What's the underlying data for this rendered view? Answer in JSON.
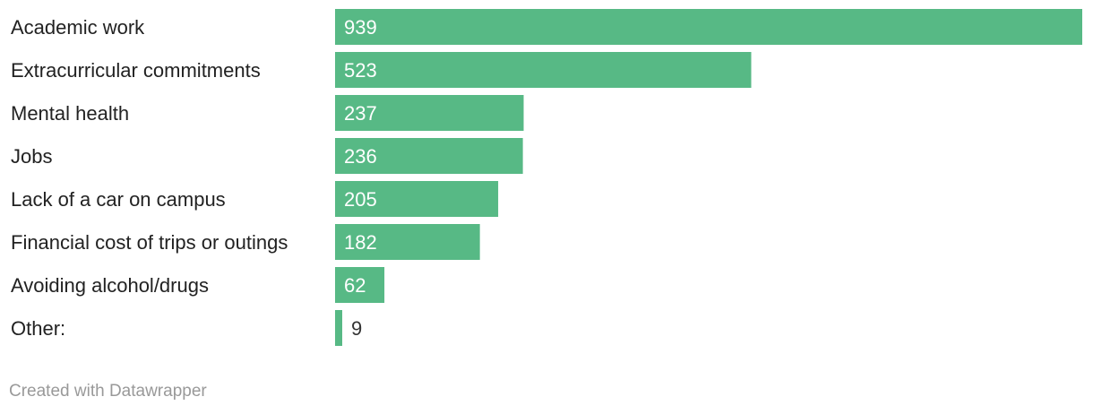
{
  "chart_data": {
    "type": "bar",
    "orientation": "horizontal",
    "categories": [
      "Academic work",
      "Extracurricular commitments",
      "Mental health",
      "Jobs",
      "Lack of a car on campus",
      "Financial cost of trips or outings",
      "Avoiding alcohol/drugs",
      "Other:"
    ],
    "values": [
      939,
      523,
      237,
      236,
      205,
      182,
      62,
      9
    ],
    "xlim": [
      0,
      939
    ],
    "grid": false,
    "legend": "none",
    "bar_color": "#57b985",
    "label_inside_color": "#ffffff",
    "label_outside_color": "#333333"
  },
  "credit": "Created with Datawrapper"
}
